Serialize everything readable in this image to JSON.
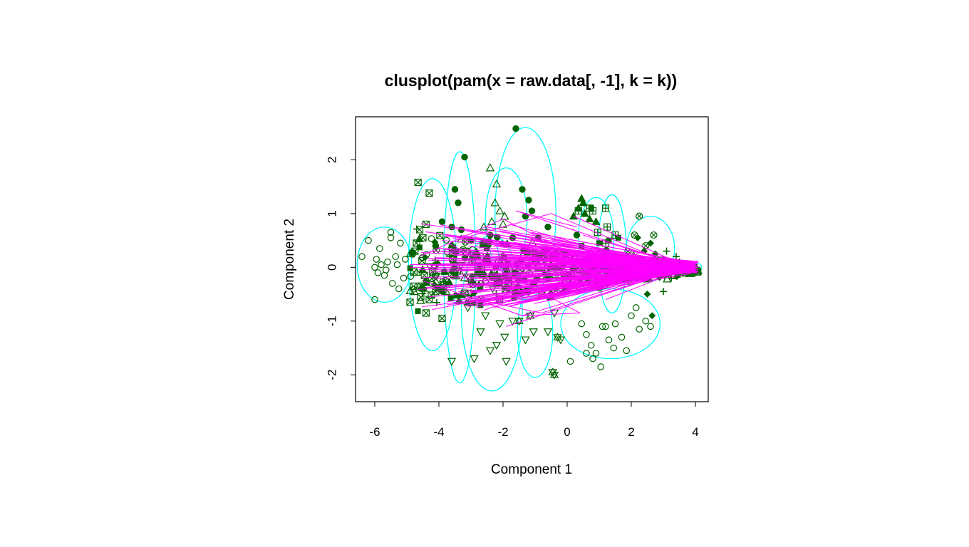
{
  "chart_data": {
    "type": "scatter",
    "title": "clusplot(pam(x = raw.data[, -1], k = k))",
    "xlabel": "Component 1",
    "ylabel": "Component 2",
    "xlim": [
      -6.6,
      4.4
    ],
    "ylim": [
      -2.5,
      2.8
    ],
    "xticks": [
      "-6",
      "-4",
      "-2",
      "0",
      "2",
      "4"
    ],
    "yticks": [
      "-2",
      "-1",
      "0",
      "1",
      "2"
    ],
    "grid": false,
    "legend": "none",
    "colors": {
      "points": "#006400",
      "ellipses": "#00FFFF",
      "connectors": "#FF00FF",
      "frame": "#000000"
    },
    "ellipses": [
      {
        "cx": -5.7,
        "cy": 0.05,
        "rx": 0.85,
        "ry": 0.7
      },
      {
        "cx": -4.2,
        "cy": 0.05,
        "rx": 0.75,
        "ry": 1.6
      },
      {
        "cx": -3.35,
        "cy": 0.0,
        "rx": 0.5,
        "ry": 2.15
      },
      {
        "cx": -2.35,
        "cy": -0.85,
        "rx": 0.95,
        "ry": 1.45
      },
      {
        "cx": -1.9,
        "cy": 0.9,
        "rx": 0.65,
        "ry": 0.95
      },
      {
        "cx": -1.3,
        "cy": 1.0,
        "rx": 0.95,
        "ry": 1.6
      },
      {
        "cx": -1.0,
        "cy": -1.2,
        "rx": 0.55,
        "ry": 0.85
      },
      {
        "cx": 0.9,
        "cy": 0.55,
        "rx": 0.55,
        "ry": 0.75
      },
      {
        "cx": 1.4,
        "cy": 0.25,
        "rx": 0.45,
        "ry": 1.1
      },
      {
        "cx": 1.35,
        "cy": -1.05,
        "rx": 1.55,
        "ry": 0.65
      },
      {
        "cx": 2.6,
        "cy": 0.35,
        "rx": 0.75,
        "ry": 0.6
      },
      {
        "cx": 3.7,
        "cy": 0.0,
        "rx": 0.5,
        "ry": 0.12
      }
    ],
    "series": [
      {
        "symbol": "open-circle",
        "points": [
          [
            -6.4,
            0.2
          ],
          [
            -6.2,
            0.5
          ],
          [
            -6.0,
            0.0
          ],
          [
            -5.9,
            -0.1
          ],
          [
            -5.85,
            0.35
          ],
          [
            -5.8,
            0.05
          ],
          [
            -5.7,
            -0.15
          ],
          [
            -5.6,
            0.1
          ],
          [
            -5.5,
            0.55
          ],
          [
            -5.45,
            -0.3
          ],
          [
            -5.35,
            0.2
          ],
          [
            -5.3,
            0.05
          ],
          [
            -5.2,
            0.45
          ],
          [
            -5.1,
            -0.2
          ],
          [
            -6.0,
            -0.6
          ],
          [
            -5.5,
            0.65
          ],
          [
            -5.65,
            -0.05
          ],
          [
            -5.95,
            0.15
          ],
          [
            -5.25,
            -0.4
          ],
          [
            -5.05,
            0.15
          ],
          [
            0.6,
            -1.25
          ],
          [
            0.75,
            -1.45
          ],
          [
            0.9,
            -1.6
          ],
          [
            1.05,
            -1.85
          ],
          [
            1.2,
            -1.1
          ],
          [
            0.8,
            -1.7
          ],
          [
            1.3,
            -1.35
          ],
          [
            1.5,
            -1.05
          ],
          [
            1.7,
            -1.3
          ],
          [
            2.0,
            -0.9
          ],
          [
            2.25,
            -1.15
          ],
          [
            2.45,
            -1.0
          ],
          [
            2.6,
            -1.1
          ],
          [
            1.85,
            -1.55
          ],
          [
            0.45,
            -1.05
          ],
          [
            0.1,
            -1.75
          ],
          [
            1.45,
            -1.5
          ],
          [
            2.15,
            -0.75
          ],
          [
            1.1,
            -1.1
          ],
          [
            0.6,
            -1.6
          ]
        ]
      },
      {
        "symbol": "filled-circle",
        "points": [
          [
            -1.6,
            2.58
          ],
          [
            -3.2,
            2.05
          ],
          [
            -3.5,
            1.45
          ],
          [
            -3.4,
            1.2
          ],
          [
            -1.4,
            1.45
          ],
          [
            -1.2,
            1.25
          ],
          [
            -1.1,
            1.05
          ],
          [
            -3.9,
            0.85
          ],
          [
            -3.6,
            0.75
          ],
          [
            -0.6,
            0.75
          ],
          [
            0.3,
            0.6
          ],
          [
            -1.3,
            0.95
          ],
          [
            -3.3,
            0.7
          ],
          [
            -2.4,
            0.6
          ],
          [
            -1.7,
            0.55
          ],
          [
            -4.1,
            0.4
          ],
          [
            -3.0,
            0.5
          ],
          [
            -0.9,
            0.55
          ]
        ]
      },
      {
        "symbol": "open-triangle-down",
        "points": [
          [
            -3.6,
            -1.75
          ],
          [
            -2.9,
            -1.7
          ],
          [
            -2.4,
            -1.55
          ],
          [
            -2.2,
            -1.45
          ],
          [
            -1.95,
            -1.3
          ],
          [
            -2.7,
            -1.2
          ],
          [
            -2.1,
            -1.05
          ],
          [
            -1.9,
            -1.75
          ],
          [
            -1.3,
            -1.35
          ],
          [
            -1.05,
            -1.2
          ],
          [
            -0.6,
            -1.2
          ],
          [
            -0.4,
            -0.85
          ],
          [
            -2.55,
            -0.9
          ],
          [
            -3.1,
            -0.75
          ],
          [
            -0.2,
            -1.35
          ],
          [
            -1.7,
            -1.0
          ]
        ]
      },
      {
        "symbol": "open-triangle-up",
        "points": [
          [
            -2.4,
            1.85
          ],
          [
            -2.2,
            1.55
          ],
          [
            -2.25,
            1.2
          ],
          [
            -2.1,
            1.05
          ],
          [
            -1.95,
            0.95
          ],
          [
            -2.6,
            0.75
          ],
          [
            -2.35,
            0.85
          ],
          [
            -2.0,
            0.8
          ]
        ]
      },
      {
        "symbol": "filled-triangle-up",
        "points": [
          [
            0.45,
            1.28
          ],
          [
            0.5,
            1.2
          ],
          [
            0.35,
            1.1
          ],
          [
            0.55,
            1.0
          ],
          [
            0.9,
            0.85
          ],
          [
            0.2,
            0.95
          ],
          [
            0.7,
            0.9
          ]
        ]
      },
      {
        "symbol": "square-x",
        "points": [
          [
            -4.65,
            1.58
          ],
          [
            -4.3,
            1.38
          ],
          [
            -4.4,
            0.8
          ],
          [
            -4.6,
            0.7
          ],
          [
            -4.5,
            0.55
          ],
          [
            -4.7,
            0.45
          ],
          [
            -4.45,
            -0.15
          ],
          [
            -4.3,
            -0.6
          ],
          [
            -4.9,
            -0.65
          ],
          [
            -4.4,
            -0.85
          ],
          [
            -3.9,
            -0.95
          ],
          [
            -4.1,
            -0.45
          ],
          [
            -4.75,
            0.3
          ],
          [
            -4.55,
            -0.35
          ]
        ]
      },
      {
        "symbol": "square-plus",
        "points": [
          [
            0.35,
            1.05
          ],
          [
            0.7,
            1.1
          ],
          [
            0.8,
            1.05
          ],
          [
            1.2,
            1.1
          ],
          [
            1.25,
            0.75
          ],
          [
            1.2,
            0.45
          ],
          [
            1.5,
            0.6
          ],
          [
            0.95,
            0.65
          ]
        ]
      },
      {
        "symbol": "filled-square",
        "points": [
          [
            0.75,
            1.1
          ],
          [
            1.3,
            0.5
          ],
          [
            1.6,
            0.55
          ],
          [
            1.0,
            0.45
          ],
          [
            0.45,
            0.4
          ]
        ]
      },
      {
        "symbol": "filled-diamond",
        "points": [
          [
            2.6,
            0.45
          ],
          [
            2.75,
            0.25
          ],
          [
            2.5,
            -0.5
          ],
          [
            2.65,
            -0.9
          ],
          [
            3.0,
            0.15
          ],
          [
            2.2,
            0.55
          ],
          [
            2.4,
            0.3
          ]
        ]
      },
      {
        "symbol": "circle-x",
        "points": [
          [
            2.25,
            0.95
          ],
          [
            2.1,
            0.6
          ],
          [
            2.45,
            0.4
          ],
          [
            2.7,
            0.6
          ],
          [
            1.9,
            0.3
          ]
        ]
      },
      {
        "symbol": "star",
        "points": [
          [
            -0.45,
            -1.95
          ],
          [
            -0.4,
            -2.0
          ],
          [
            -1.5,
            -1.0
          ],
          [
            -0.3,
            -1.3
          ],
          [
            -1.15,
            -0.9
          ]
        ]
      },
      {
        "symbol": "plus",
        "points": [
          [
            3.0,
            -0.45
          ],
          [
            3.25,
            -0.2
          ],
          [
            3.4,
            0.2
          ],
          [
            3.5,
            0.1
          ],
          [
            3.1,
            0.3
          ],
          [
            3.55,
            -0.1
          ],
          [
            3.7,
            0.05
          ],
          [
            3.85,
            0.02
          ],
          [
            3.95,
            -0.05
          ],
          [
            4.05,
            0.0
          ]
        ]
      }
    ],
    "dense_core": {
      "x_range": [
        -4.9,
        4.1
      ],
      "y_range": [
        -0.9,
        0.7
      ],
      "count": 520
    },
    "connector_lines": [
      [
        [
          -4.9,
          0.0
        ],
        [
          4.1,
          0.0
        ]
      ],
      [
        [
          -4.9,
          0.05
        ],
        [
          3.9,
          0.0
        ]
      ],
      [
        [
          -3.8,
          0.6
        ],
        [
          4.0,
          0.0
        ]
      ],
      [
        [
          -2.5,
          0.75
        ],
        [
          3.8,
          0.05
        ]
      ],
      [
        [
          -1.6,
          1.05
        ],
        [
          3.7,
          0.0
        ]
      ],
      [
        [
          -1.8,
          0.8
        ],
        [
          3.6,
          -0.1
        ]
      ],
      [
        [
          -3.5,
          -0.7
        ],
        [
          4.0,
          0.0
        ]
      ],
      [
        [
          -1.4,
          -0.9
        ],
        [
          3.9,
          0.05
        ]
      ],
      [
        [
          -0.8,
          -0.85
        ],
        [
          3.7,
          0.0
        ]
      ],
      [
        [
          0.2,
          0.95
        ],
        [
          3.8,
          0.0
        ]
      ],
      [
        [
          0.5,
          0.6
        ],
        [
          3.5,
          0.05
        ]
      ],
      [
        [
          -2.2,
          -0.5
        ],
        [
          3.9,
          -0.05
        ]
      ],
      [
        [
          -3.9,
          0.3
        ],
        [
          4.0,
          0.05
        ]
      ],
      [
        [
          -4.2,
          -0.4
        ],
        [
          3.8,
          0.0
        ]
      ],
      [
        [
          -1.0,
          0.5
        ],
        [
          3.6,
          0.0
        ]
      ],
      [
        [
          -2.9,
          0.2
        ],
        [
          4.1,
          0.0
        ]
      ],
      [
        [
          -1.9,
          -1.1
        ],
        [
          3.7,
          0.0
        ]
      ],
      [
        [
          -0.5,
          1.0
        ],
        [
          3.5,
          0.0
        ]
      ],
      [
        [
          -3.2,
          0.55
        ],
        [
          -0.5,
          1.0
        ]
      ],
      [
        [
          -2.8,
          -0.6
        ],
        [
          -0.8,
          -0.85
        ]
      ],
      [
        [
          -1.4,
          -0.9
        ],
        [
          0.4,
          -0.85
        ]
      ],
      [
        [
          -1.6,
          1.05
        ],
        [
          0.3,
          0.75
        ]
      ],
      [
        [
          -3.7,
          0.45
        ],
        [
          0.4,
          -0.85
        ]
      ],
      [
        [
          -2.0,
          0.9
        ],
        [
          1.6,
          -0.2
        ]
      ],
      [
        [
          0.0,
          -0.2
        ],
        [
          3.9,
          0.0
        ]
      ],
      [
        [
          1.0,
          0.3
        ],
        [
          4.0,
          0.0
        ]
      ],
      [
        [
          1.2,
          -0.6
        ],
        [
          3.8,
          0.0
        ]
      ],
      [
        [
          -4.6,
          0.2
        ],
        [
          -2.0,
          0.9
        ]
      ],
      [
        [
          -4.5,
          -0.25
        ],
        [
          -1.4,
          -0.9
        ]
      ],
      [
        [
          -2.6,
          -0.8
        ],
        [
          2.4,
          0.3
        ]
      ]
    ]
  }
}
